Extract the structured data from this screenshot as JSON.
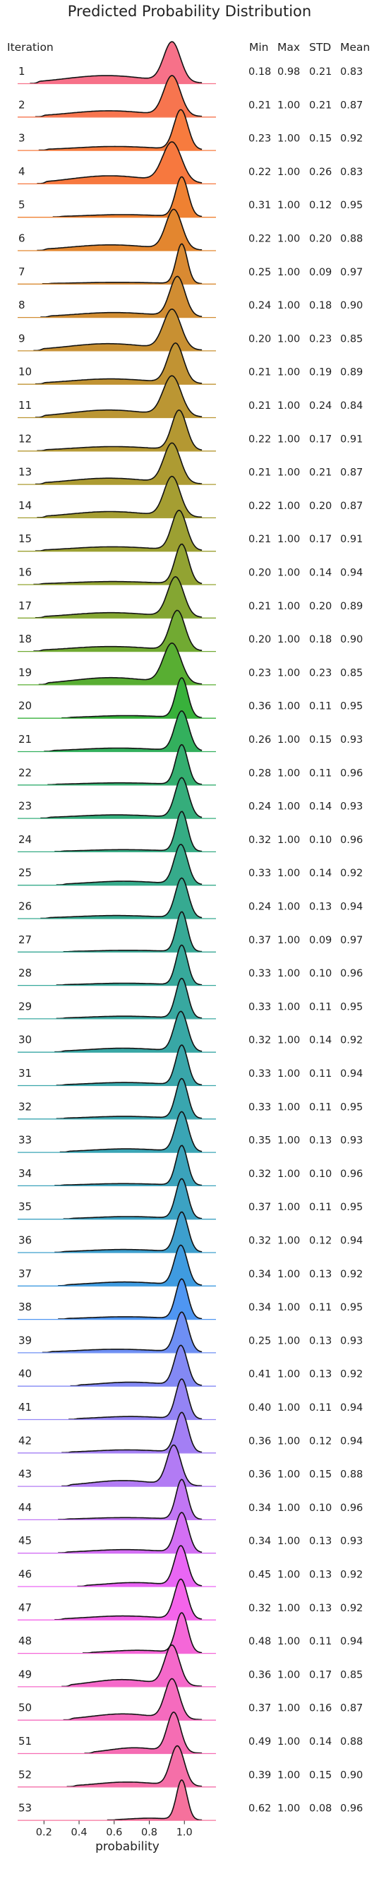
{
  "chart_data": {
    "type": "ridgeline",
    "title": "Predicted Probability Distribution",
    "xlabel": "probability",
    "xlim": [
      0.05,
      1.18
    ],
    "xticks": [
      "0.2",
      "0.4",
      "0.6",
      "0.8",
      "1.0"
    ],
    "xtick_values": [
      0.2,
      0.4,
      0.6,
      0.8,
      1.0
    ],
    "column_headers": {
      "iteration": "Iteration",
      "min": "Min",
      "max": "Max",
      "std": "STD",
      "mean": "Mean"
    },
    "series": [
      {
        "name": "1",
        "min": "0.18",
        "max": "0.98",
        "std": "0.21",
        "mean": "0.83",
        "color": "#f77189"
      },
      {
        "name": "2",
        "min": "0.21",
        "max": "1.00",
        "std": "0.21",
        "mean": "0.87",
        "color": "#f7754f"
      },
      {
        "name": "3",
        "min": "0.23",
        "max": "1.00",
        "std": "0.15",
        "mean": "0.92",
        "color": "#f77b3e"
      },
      {
        "name": "4",
        "min": "0.22",
        "max": "1.00",
        "std": "0.26",
        "mean": "0.83",
        "color": "#f7783e"
      },
      {
        "name": "5",
        "min": "0.31",
        "max": "1.00",
        "std": "0.12",
        "mean": "0.95",
        "color": "#ef8132"
      },
      {
        "name": "6",
        "min": "0.22",
        "max": "1.00",
        "std": "0.20",
        "mean": "0.88",
        "color": "#e3862f"
      },
      {
        "name": "7",
        "min": "0.25",
        "max": "1.00",
        "std": "0.09",
        "mean": "0.97",
        "color": "#d98a32"
      },
      {
        "name": "8",
        "min": "0.24",
        "max": "1.00",
        "std": "0.18",
        "mean": "0.90",
        "color": "#d18d32"
      },
      {
        "name": "9",
        "min": "0.20",
        "max": "1.00",
        "std": "0.23",
        "mean": "0.85",
        "color": "#c89032"
      },
      {
        "name": "10",
        "min": "0.21",
        "max": "1.00",
        "std": "0.19",
        "mean": "0.89",
        "color": "#c19333"
      },
      {
        "name": "11",
        "min": "0.21",
        "max": "1.00",
        "std": "0.24",
        "mean": "0.84",
        "color": "#bb9633"
      },
      {
        "name": "12",
        "min": "0.22",
        "max": "1.00",
        "std": "0.17",
        "mean": "0.91",
        "color": "#b49832"
      },
      {
        "name": "13",
        "min": "0.21",
        "max": "1.00",
        "std": "0.21",
        "mean": "0.87",
        "color": "#ad9b32"
      },
      {
        "name": "14",
        "min": "0.22",
        "max": "1.00",
        "std": "0.20",
        "mean": "0.87",
        "color": "#a59e32"
      },
      {
        "name": "15",
        "min": "0.21",
        "max": "1.00",
        "std": "0.17",
        "mean": "0.91",
        "color": "#9ca032"
      },
      {
        "name": "16",
        "min": "0.20",
        "max": "1.00",
        "std": "0.14",
        "mean": "0.94",
        "color": "#92a332"
      },
      {
        "name": "17",
        "min": "0.21",
        "max": "1.00",
        "std": "0.20",
        "mean": "0.89",
        "color": "#84a632"
      },
      {
        "name": "18",
        "min": "0.20",
        "max": "1.00",
        "std": "0.18",
        "mean": "0.90",
        "color": "#71aa32"
      },
      {
        "name": "19",
        "min": "0.23",
        "max": "1.00",
        "std": "0.23",
        "mean": "0.85",
        "color": "#58ae32"
      },
      {
        "name": "20",
        "min": "0.36",
        "max": "1.00",
        "std": "0.11",
        "mean": "0.95",
        "color": "#38b13b"
      },
      {
        "name": "21",
        "min": "0.26",
        "max": "1.00",
        "std": "0.15",
        "mean": "0.93",
        "color": "#33b05d"
      },
      {
        "name": "22",
        "min": "0.28",
        "max": "1.00",
        "std": "0.11",
        "mean": "0.96",
        "color": "#34ae6f"
      },
      {
        "name": "23",
        "min": "0.24",
        "max": "1.00",
        "std": "0.14",
        "mean": "0.93",
        "color": "#35ad7b"
      },
      {
        "name": "24",
        "min": "0.32",
        "max": "1.00",
        "std": "0.10",
        "mean": "0.96",
        "color": "#35ac84"
      },
      {
        "name": "25",
        "min": "0.33",
        "max": "1.00",
        "std": "0.14",
        "mean": "0.92",
        "color": "#36ab8b"
      },
      {
        "name": "26",
        "min": "0.24",
        "max": "1.00",
        "std": "0.13",
        "mean": "0.94",
        "color": "#36aa91"
      },
      {
        "name": "27",
        "min": "0.37",
        "max": "1.00",
        "std": "0.09",
        "mean": "0.97",
        "color": "#37a996"
      },
      {
        "name": "28",
        "min": "0.33",
        "max": "1.00",
        "std": "0.10",
        "mean": "0.96",
        "color": "#37a99b"
      },
      {
        "name": "29",
        "min": "0.33",
        "max": "1.00",
        "std": "0.11",
        "mean": "0.95",
        "color": "#38a8a0"
      },
      {
        "name": "30",
        "min": "0.32",
        "max": "1.00",
        "std": "0.14",
        "mean": "0.92",
        "color": "#38a7a5"
      },
      {
        "name": "31",
        "min": "0.33",
        "max": "1.00",
        "std": "0.11",
        "mean": "0.94",
        "color": "#39a6aa"
      },
      {
        "name": "32",
        "min": "0.33",
        "max": "1.00",
        "std": "0.11",
        "mean": "0.95",
        "color": "#39a6af"
      },
      {
        "name": "33",
        "min": "0.35",
        "max": "1.00",
        "std": "0.13",
        "mean": "0.93",
        "color": "#3aa5b5"
      },
      {
        "name": "34",
        "min": "0.32",
        "max": "1.00",
        "std": "0.10",
        "mean": "0.96",
        "color": "#3ba3bb"
      },
      {
        "name": "35",
        "min": "0.37",
        "max": "1.00",
        "std": "0.11",
        "mean": "0.95",
        "color": "#3ca2c3"
      },
      {
        "name": "36",
        "min": "0.32",
        "max": "1.00",
        "std": "0.12",
        "mean": "0.94",
        "color": "#3d9fce"
      },
      {
        "name": "37",
        "min": "0.34",
        "max": "1.00",
        "std": "0.13",
        "mean": "0.92",
        "color": "#3f9be0"
      },
      {
        "name": "38",
        "min": "0.34",
        "max": "1.00",
        "std": "0.11",
        "mean": "0.95",
        "color": "#4f96f2"
      },
      {
        "name": "39",
        "min": "0.25",
        "max": "1.00",
        "std": "0.13",
        "mean": "0.93",
        "color": "#6e8ff4"
      },
      {
        "name": "40",
        "min": "0.41",
        "max": "1.00",
        "std": "0.13",
        "mean": "0.92",
        "color": "#8389f4"
      },
      {
        "name": "41",
        "min": "0.40",
        "max": "1.00",
        "std": "0.11",
        "mean": "0.94",
        "color": "#9484f4"
      },
      {
        "name": "42",
        "min": "0.36",
        "max": "1.00",
        "std": "0.12",
        "mean": "0.94",
        "color": "#a37ff4"
      },
      {
        "name": "43",
        "min": "0.36",
        "max": "1.00",
        "std": "0.15",
        "mean": "0.88",
        "color": "#b27bf4"
      },
      {
        "name": "44",
        "min": "0.34",
        "max": "1.00",
        "std": "0.10",
        "mean": "0.96",
        "color": "#c176f4"
      },
      {
        "name": "45",
        "min": "0.34",
        "max": "1.00",
        "std": "0.13",
        "mean": "0.93",
        "color": "#d36ff4"
      },
      {
        "name": "46",
        "min": "0.45",
        "max": "1.00",
        "std": "0.13",
        "mean": "0.92",
        "color": "#e966f4"
      },
      {
        "name": "47",
        "min": "0.32",
        "max": "1.00",
        "std": "0.13",
        "mean": "0.92",
        "color": "#f464ea"
      },
      {
        "name": "48",
        "min": "0.48",
        "max": "1.00",
        "std": "0.11",
        "mean": "0.94",
        "color": "#f567d8"
      },
      {
        "name": "49",
        "min": "0.36",
        "max": "1.00",
        "std": "0.17",
        "mean": "0.85",
        "color": "#f569ca"
      },
      {
        "name": "50",
        "min": "0.37",
        "max": "1.00",
        "std": "0.16",
        "mean": "0.87",
        "color": "#f56bbe"
      },
      {
        "name": "51",
        "min": "0.49",
        "max": "1.00",
        "std": "0.14",
        "mean": "0.88",
        "color": "#f56db3"
      },
      {
        "name": "52",
        "min": "0.39",
        "max": "1.00",
        "std": "0.15",
        "mean": "0.90",
        "color": "#f56fa8"
      },
      {
        "name": "53",
        "min": "0.62",
        "max": "1.00",
        "std": "0.08",
        "mean": "0.96",
        "color": "#f5719c"
      }
    ]
  }
}
